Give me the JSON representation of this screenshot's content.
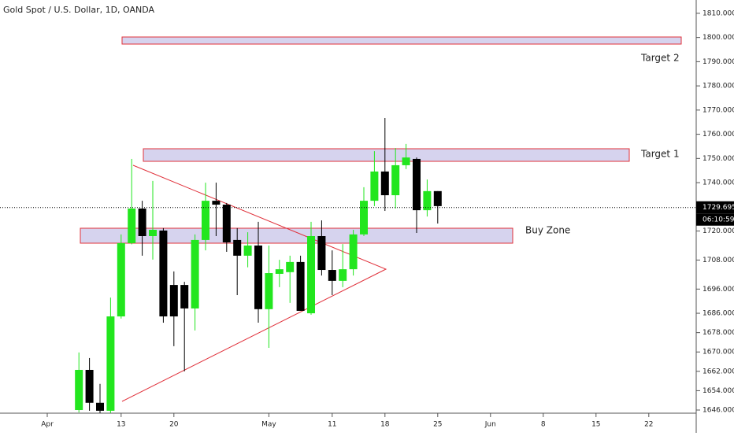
{
  "chart_data": {
    "type": "candlestick",
    "title": "Gold Spot / U.S. Dollar, 1D, OANDA",
    "categories": [
      "Apr",
      null,
      null,
      null,
      null,
      null,
      null,
      "13",
      null,
      null,
      null,
      null,
      "20",
      null,
      null,
      null,
      null,
      null,
      null,
      null,
      null,
      "May",
      null,
      null,
      null,
      null,
      null,
      "11",
      null,
      null,
      null,
      null,
      "18",
      null,
      null,
      null,
      null,
      "25",
      null,
      null,
      null,
      null,
      "Jun",
      null,
      null,
      null,
      null,
      "8",
      null,
      null,
      null,
      null,
      "15",
      null,
      null,
      null,
      null,
      "22",
      null,
      null,
      null,
      null
    ],
    "open": [
      null,
      null,
      null,
      1646,
      1662.6,
      1649,
      1645.7,
      1684.7,
      1715,
      1729.3,
      1717.9,
      1720.2,
      1697.7,
      1697.7,
      1688,
      1716.3,
      1732.5,
      1730.9,
      1716.3,
      1709.8,
      1714,
      1687.7,
      1702.3,
      1703,
      1707.2,
      1686,
      1717.9,
      1703.9,
      1699.4,
      1704.2,
      1718.6,
      1732.5,
      1744.6,
      1734.8,
      1747.2,
      1749.8,
      1728.6,
      1736.5,
      null,
      null,
      null,
      null,
      null,
      null,
      null,
      null,
      null,
      null,
      null,
      null,
      null,
      null,
      null,
      null,
      null,
      null,
      null,
      null,
      null,
      null,
      null,
      null
    ],
    "high": [
      null,
      null,
      null,
      1669.8,
      1667.5,
      1656.8,
      1692.5,
      1718.6,
      1749.8,
      1732.5,
      1740.7,
      1721.2,
      1703.3,
      1699,
      1718.6,
      1740,
      1740,
      1731.6,
      1721.2,
      1719.5,
      1723.8,
      1714,
      1708.1,
      1709.8,
      1709.8,
      1723.8,
      1724.4,
      1712,
      1714.6,
      1720.5,
      1738.1,
      1753,
      1766.7,
      1754.3,
      1756,
      1750.4,
      1741.3,
      1736.5,
      null,
      null,
      null,
      null,
      null,
      null,
      null,
      null,
      null,
      null,
      null,
      null,
      null,
      null,
      null,
      null,
      null,
      null,
      null,
      null,
      null,
      null,
      null,
      null
    ],
    "low": [
      null,
      null,
      null,
      1645,
      1645.7,
      1644.8,
      1644.8,
      1683.8,
      1714.5,
      1709.8,
      1708.2,
      1682.1,
      1672.4,
      1662,
      1678.9,
      1712,
      1717.9,
      1711.4,
      1693.5,
      1705,
      1682.1,
      1671.7,
      1696.8,
      1690.3,
      1687,
      1685.4,
      1701.6,
      1693.5,
      1696.8,
      1701.6,
      1717.9,
      1730.3,
      1728.3,
      1729.3,
      1745.6,
      1719.2,
      1726,
      1723.1,
      null,
      null,
      null,
      null,
      null,
      null,
      null,
      null,
      null,
      null,
      null,
      null,
      null,
      null,
      null,
      null,
      null,
      null,
      null,
      null,
      null,
      null,
      null,
      null
    ],
    "close": [
      null,
      null,
      null,
      1662.6,
      1649,
      1645.7,
      1684.7,
      1715,
      1729.3,
      1717.9,
      1720.5,
      1684.7,
      1684.7,
      1688,
      1716.3,
      1732.5,
      1730.9,
      1715.3,
      1709.8,
      1714,
      1687.7,
      1702.6,
      1704.2,
      1707.2,
      1687,
      1717.9,
      1703.9,
      1699.4,
      1704.2,
      1718.6,
      1732.5,
      1744.6,
      1734.8,
      1747.2,
      1750.4,
      1728.6,
      1736.5,
      1730.3,
      null,
      null,
      null,
      null,
      null,
      null,
      null,
      null,
      null,
      null,
      null,
      null,
      null,
      null,
      null,
      null,
      null,
      null,
      null,
      null,
      null,
      null,
      null,
      null
    ],
    "up_color": "#22e61e",
    "down_color": "#000000",
    "ylim": [
      1644.7,
      1815.5
    ],
    "yticks": [
      {
        "value": 1810,
        "label": "1810.000"
      },
      {
        "value": 1800,
        "label": "1800.000"
      },
      {
        "value": 1790,
        "label": "1790.000"
      },
      {
        "value": 1780,
        "label": "1780.000"
      },
      {
        "value": 1770,
        "label": "1770.000"
      },
      {
        "value": 1760,
        "label": "1760.000"
      },
      {
        "value": 1750,
        "label": "1750.000"
      },
      {
        "value": 1740,
        "label": "1740.000"
      },
      {
        "value": 1720,
        "label": "1720.000"
      },
      {
        "value": 1708,
        "label": "1708.000"
      },
      {
        "value": 1696,
        "label": "1696.000"
      },
      {
        "value": 1686,
        "label": "1686.000"
      },
      {
        "value": 1678,
        "label": "1678.000"
      },
      {
        "value": 1670,
        "label": "1670.000"
      },
      {
        "value": 1662,
        "label": "1662.000"
      },
      {
        "value": 1654,
        "label": "1654.000"
      },
      {
        "value": 1646,
        "label": "1646.000"
      }
    ],
    "last_price": {
      "value": 1729.695,
      "label": "1729.695"
    },
    "countdown": "06:10:59",
    "annotations": [
      "Target 2",
      "Target 1",
      "Buy Zone"
    ]
  }
}
